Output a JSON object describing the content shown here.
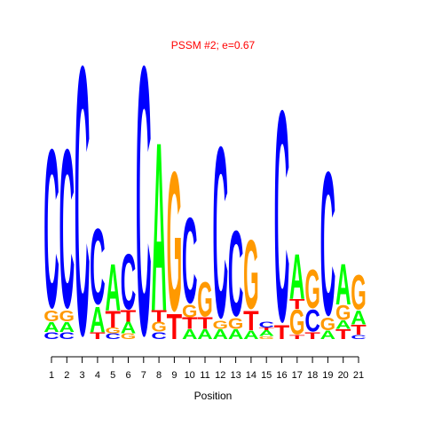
{
  "chart_data": {
    "type": "sequence-logo",
    "title": "PSSM #2; e=0.67",
    "title_color": "#ff0000",
    "xlabel": "Position",
    "ylabel": "",
    "ylim": [
      0,
      2
    ],
    "letter_colors": {
      "A": "#00ff00",
      "C": "#0000ff",
      "G": "#ff9900",
      "T": "#ff0000"
    },
    "positions": [
      {
        "position": 1,
        "stack": [
          {
            "letter": "C",
            "height": 0.05
          },
          {
            "letter": "A",
            "height": 0.07
          },
          {
            "letter": "G",
            "height": 0.08
          },
          {
            "letter": "C",
            "height": 1.15
          }
        ]
      },
      {
        "position": 2,
        "stack": [
          {
            "letter": "C",
            "height": 0.05
          },
          {
            "letter": "A",
            "height": 0.07
          },
          {
            "letter": "G",
            "height": 0.08
          },
          {
            "letter": "C",
            "height": 1.15
          }
        ]
      },
      {
        "position": 3,
        "stack": [
          {
            "letter": "C",
            "height": 1.95
          }
        ]
      },
      {
        "position": 4,
        "stack": [
          {
            "letter": "T",
            "height": 0.05
          },
          {
            "letter": "A",
            "height": 0.18
          },
          {
            "letter": "C",
            "height": 0.55
          }
        ]
      },
      {
        "position": 5,
        "stack": [
          {
            "letter": "C",
            "height": 0.04
          },
          {
            "letter": "G",
            "height": 0.04
          },
          {
            "letter": "T",
            "height": 0.12
          },
          {
            "letter": "A",
            "height": 0.33
          }
        ]
      },
      {
        "position": 6,
        "stack": [
          {
            "letter": "G",
            "height": 0.04
          },
          {
            "letter": "A",
            "height": 0.08
          },
          {
            "letter": "T",
            "height": 0.08
          },
          {
            "letter": "C",
            "height": 0.4
          }
        ]
      },
      {
        "position": 7,
        "stack": [
          {
            "letter": "C",
            "height": 1.95
          }
        ]
      },
      {
        "position": 8,
        "stack": [
          {
            "letter": "C",
            "height": 0.05
          },
          {
            "letter": "G",
            "height": 0.07
          },
          {
            "letter": "T",
            "height": 0.08
          },
          {
            "letter": "A",
            "height": 1.2
          }
        ]
      },
      {
        "position": 9,
        "stack": [
          {
            "letter": "T",
            "height": 0.18
          },
          {
            "letter": "G",
            "height": 1.01
          }
        ]
      },
      {
        "position": 10,
        "stack": [
          {
            "letter": "A",
            "height": 0.07
          },
          {
            "letter": "T",
            "height": 0.08
          },
          {
            "letter": "G",
            "height": 0.09
          },
          {
            "letter": "C",
            "height": 0.62
          }
        ]
      },
      {
        "position": 11,
        "stack": [
          {
            "letter": "A",
            "height": 0.07
          },
          {
            "letter": "T",
            "height": 0.08
          },
          {
            "letter": "G",
            "height": 0.25
          }
        ]
      },
      {
        "position": 12,
        "stack": [
          {
            "letter": "A",
            "height": 0.07
          },
          {
            "letter": "G",
            "height": 0.06
          },
          {
            "letter": "C",
            "height": 1.24
          }
        ]
      },
      {
        "position": 13,
        "stack": [
          {
            "letter": "A",
            "height": 0.07
          },
          {
            "letter": "G",
            "height": 0.08
          },
          {
            "letter": "C",
            "height": 0.62
          }
        ]
      },
      {
        "position": 14,
        "stack": [
          {
            "letter": "A",
            "height": 0.06
          },
          {
            "letter": "T",
            "height": 0.14
          },
          {
            "letter": "G",
            "height": 0.5
          }
        ]
      },
      {
        "position": 15,
        "stack": [
          {
            "letter": "G",
            "height": 0.02
          },
          {
            "letter": "A",
            "height": 0.04
          },
          {
            "letter": "T",
            "height": 0.02
          },
          {
            "letter": "C",
            "height": 0.04
          }
        ]
      },
      {
        "position": 16,
        "stack": [
          {
            "letter": "T",
            "height": 0.1
          },
          {
            "letter": "C",
            "height": 1.53
          }
        ]
      },
      {
        "position": 17,
        "stack": [
          {
            "letter": "T",
            "height": 0.03
          },
          {
            "letter": "G",
            "height": 0.18
          },
          {
            "letter": "T",
            "height": 0.07
          },
          {
            "letter": "A",
            "height": 0.32
          }
        ]
      },
      {
        "position": 18,
        "stack": [
          {
            "letter": "T",
            "height": 0.05
          },
          {
            "letter": "C",
            "height": 0.16
          },
          {
            "letter": "G",
            "height": 0.28
          }
        ]
      },
      {
        "position": 19,
        "stack": [
          {
            "letter": "A",
            "height": 0.06
          },
          {
            "letter": "G",
            "height": 0.09
          },
          {
            "letter": "C",
            "height": 1.04
          }
        ]
      },
      {
        "position": 20,
        "stack": [
          {
            "letter": "T",
            "height": 0.07
          },
          {
            "letter": "A",
            "height": 0.06
          },
          {
            "letter": "G",
            "height": 0.11
          },
          {
            "letter": "A",
            "height": 0.29
          }
        ]
      },
      {
        "position": 21,
        "stack": [
          {
            "letter": "C",
            "height": 0.03
          },
          {
            "letter": "T",
            "height": 0.07
          },
          {
            "letter": "A",
            "height": 0.1
          },
          {
            "letter": "G",
            "height": 0.25
          }
        ]
      }
    ]
  }
}
